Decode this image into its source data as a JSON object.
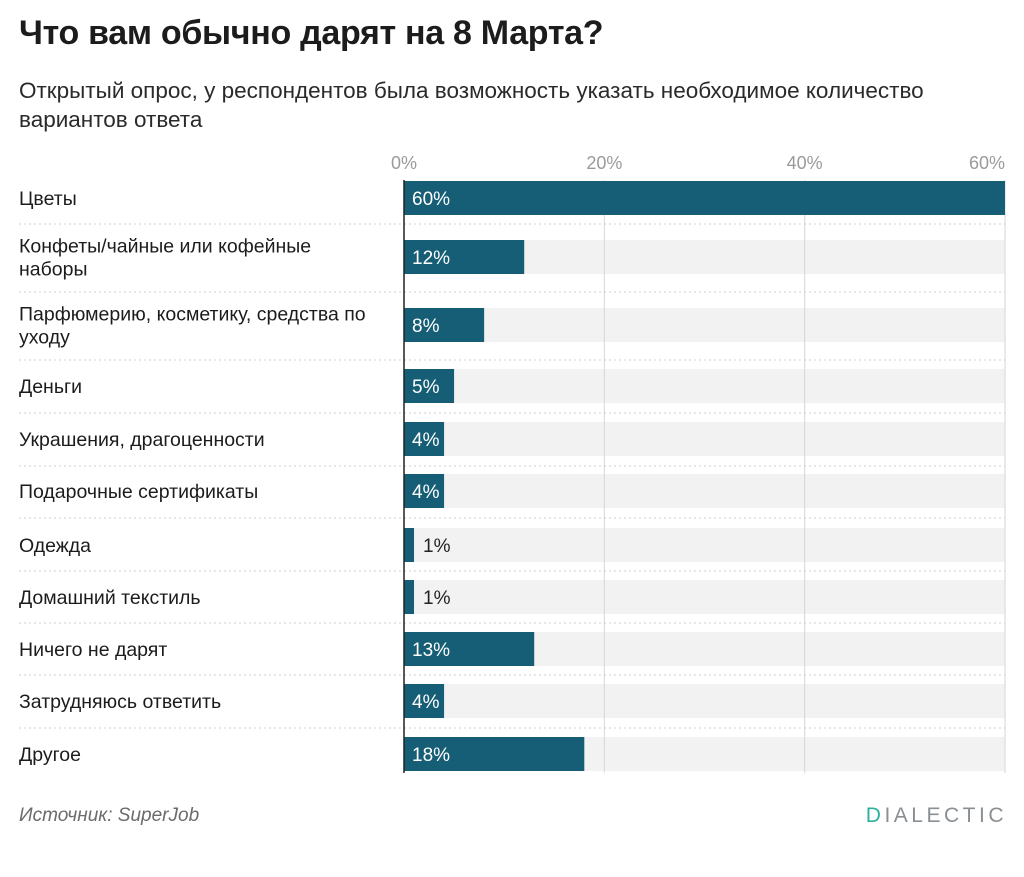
{
  "title": "Что вам обычно дарят на 8 Марта?",
  "subtitle": "Открытый опрос, у респондентов была возможность указать необходимое количество вариантов ответа",
  "source": "Источник: SuperJob",
  "logo": {
    "first_letter": "D",
    "rest": "IALECTIC"
  },
  "colors": {
    "bar": "#155e75",
    "track": "#f2f2f2",
    "grid": "#d6d6d6",
    "label_inside": "#ffffff",
    "label_outside": "#222222",
    "axis": "#222222",
    "tick": "#9a9a9a"
  },
  "chart_data": {
    "type": "bar",
    "orientation": "horizontal",
    "title": "Что вам обычно дарят на 8 Марта?",
    "xlabel": "",
    "ylabel": "",
    "xlim": [
      0,
      60
    ],
    "ticks": [
      0,
      20,
      40,
      60
    ],
    "tick_labels": [
      "0%",
      "20%",
      "40%",
      "60%"
    ],
    "categories": [
      [
        "Цветы"
      ],
      [
        "Конфеты/чайные или кофейные",
        "наборы"
      ],
      [
        "Парфюмерию, косметику, средства по",
        "уходу"
      ],
      [
        "Деньги"
      ],
      [
        "Украшения, драгоценности"
      ],
      [
        "Подарочные сертификаты"
      ],
      [
        "Одежда"
      ],
      [
        "Домашний текстиль"
      ],
      [
        "Ничего не дарят"
      ],
      [
        "Затрудняюсь ответить"
      ],
      [
        "Другое"
      ]
    ],
    "values": [
      60,
      12,
      8,
      5,
      4,
      4,
      1,
      1,
      13,
      4,
      18
    ],
    "value_labels": [
      "60%",
      "12%",
      "8%",
      "5%",
      "4%",
      "4%",
      "1%",
      "1%",
      "13%",
      "4%",
      "18%"
    ]
  }
}
